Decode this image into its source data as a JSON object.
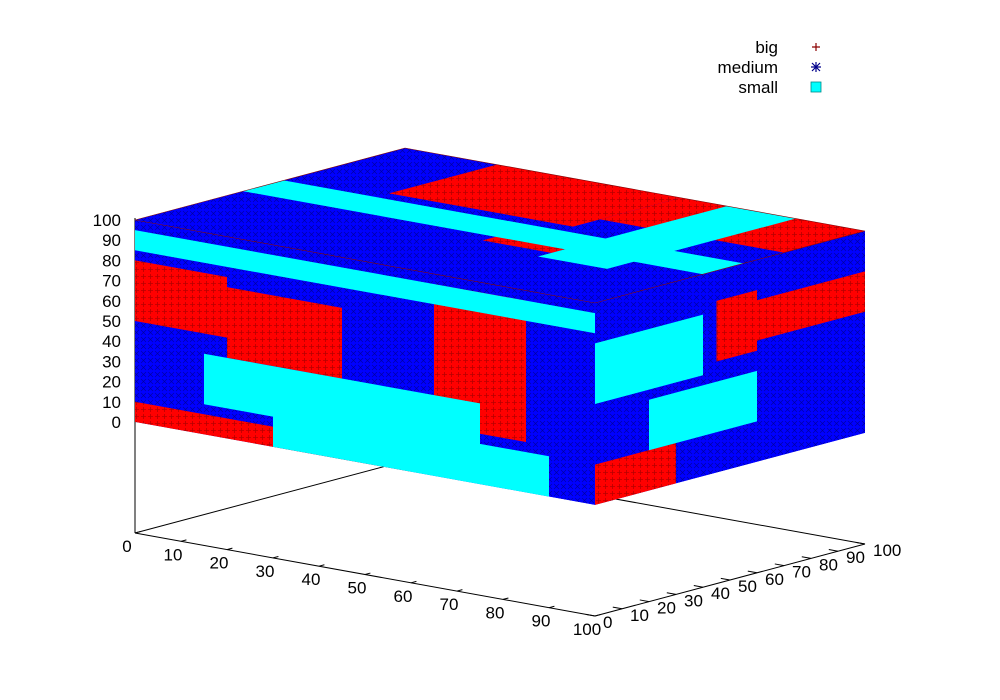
{
  "chart_data": {
    "type": "scatter",
    "subtype": "3d-voxel",
    "title": "",
    "xlabel": "",
    "ylabel": "",
    "zlabel": "",
    "xlim": [
      0,
      100
    ],
    "ylim": [
      0,
      100
    ],
    "zlim": [
      0,
      100
    ],
    "x_ticks": [
      "0",
      "10",
      "20",
      "30",
      "40",
      "50",
      "60",
      "70",
      "80",
      "90",
      "100"
    ],
    "y_ticks": [
      "0",
      "10",
      "20",
      "30",
      "40",
      "50",
      "60",
      "70",
      "80",
      "90",
      "100"
    ],
    "z_ticks": [
      "0",
      "10",
      "20",
      "30",
      "40",
      "50",
      "60",
      "70",
      "80",
      "90",
      "100"
    ],
    "grid": false,
    "legend_position": "top-right",
    "series": [
      {
        "name": "big",
        "marker": "plus",
        "color": "#ff0000",
        "legend_color": "#8b0000",
        "regions": [
          {
            "x": [
              0,
              60
            ],
            "y": [
              0,
              10
            ],
            "z": [
              0,
              10
            ]
          },
          {
            "x": [
              20,
              45
            ],
            "y": [
              0,
              10
            ],
            "z": [
              40,
              75
            ]
          },
          {
            "x": [
              65,
              85
            ],
            "y": [
              0,
              10
            ],
            "z": [
              25,
              95
            ]
          },
          {
            "x": [
              0,
              20
            ],
            "y": [
              0,
              10
            ],
            "z": [
              50,
              80
            ]
          },
          {
            "x": [
              60,
              100
            ],
            "y": [
              70,
              100
            ],
            "z": [
              85,
              100
            ]
          },
          {
            "x": [
              20,
              60
            ],
            "y": [
              60,
              100
            ],
            "z": [
              85,
              100
            ]
          },
          {
            "x": [
              55,
              70
            ],
            "y": [
              35,
              45
            ],
            "z": [
              85,
              100
            ]
          },
          {
            "x": [
              100,
              100
            ],
            "y": [
              0,
              30
            ],
            "z": [
              0,
              20
            ]
          },
          {
            "x": [
              100,
              100
            ],
            "y": [
              45,
              60
            ],
            "z": [
              55,
              85
            ]
          },
          {
            "x": [
              100,
              100
            ],
            "y": [
              60,
              100
            ],
            "z": [
              60,
              80
            ]
          }
        ]
      },
      {
        "name": "medium",
        "marker": "star",
        "color": "#0000ff",
        "legend_color": "#00008b",
        "regions": [
          {
            "x": [
              0,
              100
            ],
            "y": [
              0,
              10
            ],
            "z": [
              0,
              100
            ]
          },
          {
            "x": [
              0,
              100
            ],
            "y": [
              0,
              100
            ],
            "z": [
              100,
              100
            ]
          },
          {
            "x": [
              100,
              100
            ],
            "y": [
              0,
              100
            ],
            "z": [
              0,
              100
            ]
          }
        ]
      },
      {
        "name": "small",
        "marker": "filled-square",
        "color": "#00ffff",
        "legend_color": "#00ffff",
        "regions": [
          {
            "x": [
              15,
              75
            ],
            "y": [
              0,
              10
            ],
            "z": [
              15,
              40
            ]
          },
          {
            "x": [
              30,
              90
            ],
            "y": [
              0,
              10
            ],
            "z": [
              0,
              20
            ]
          },
          {
            "x": [
              0,
              100
            ],
            "y": [
              0,
              10
            ],
            "z": [
              85,
              95
            ]
          },
          {
            "x": [
              0,
              100
            ],
            "y": [
              40,
              55
            ],
            "z": [
              95,
              100
            ]
          },
          {
            "x": [
              70,
              85
            ],
            "y": [
              30,
              100
            ],
            "z": [
              95,
              100
            ]
          },
          {
            "x": [
              100,
              100
            ],
            "y": [
              0,
              40
            ],
            "z": [
              50,
              80
            ]
          },
          {
            "x": [
              100,
              100
            ],
            "y": [
              20,
              60
            ],
            "z": [
              20,
              45
            ]
          }
        ]
      }
    ]
  }
}
